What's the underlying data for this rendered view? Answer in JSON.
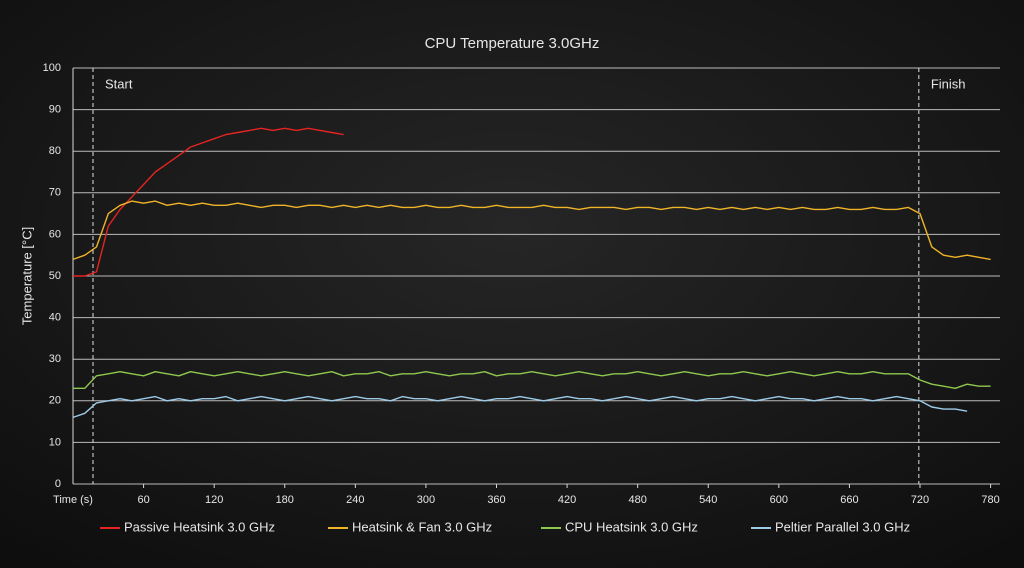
{
  "chart_data": {
    "type": "line",
    "title": "CPU Temperature 3.0GHz",
    "x_label": "Time (s)",
    "y_label": "Temperature [°C]",
    "x": [
      0,
      10,
      20,
      30,
      40,
      50,
      60,
      70,
      80,
      90,
      100,
      110,
      120,
      130,
      140,
      150,
      160,
      170,
      180,
      190,
      200,
      210,
      220,
      230,
      240,
      250,
      260,
      270,
      280,
      290,
      300,
      310,
      320,
      330,
      340,
      350,
      360,
      370,
      380,
      390,
      400,
      410,
      420,
      430,
      440,
      450,
      460,
      470,
      480,
      490,
      500,
      510,
      520,
      530,
      540,
      550,
      560,
      570,
      580,
      590,
      600,
      610,
      620,
      630,
      640,
      650,
      660,
      670,
      680,
      690,
      700,
      710,
      720,
      730,
      740,
      750,
      760,
      770,
      780
    ],
    "series": [
      {
        "name": "Passive Heatsink 3.0 GHz",
        "color": "#e52421",
        "values": [
          50,
          50,
          51,
          62,
          66,
          69,
          72,
          75,
          77,
          79,
          81,
          82,
          83,
          84,
          84.5,
          85,
          85.5,
          85,
          85.5,
          85,
          85.5,
          85,
          84.5,
          84,
          null,
          null,
          null,
          null,
          null,
          null,
          null,
          null,
          null,
          null,
          null,
          null,
          null,
          null,
          null,
          null,
          null,
          null,
          null,
          null,
          null,
          null,
          null,
          null,
          null,
          null,
          null,
          null,
          null,
          null,
          null,
          null,
          null,
          null,
          null,
          null,
          null,
          null,
          null,
          null,
          null,
          null,
          null,
          null,
          null,
          null,
          null,
          null,
          null,
          null,
          null,
          null,
          null,
          null,
          null
        ]
      },
      {
        "name": "Heatsink & Fan 3.0 GHz",
        "color": "#f0b429",
        "values": [
          54,
          55,
          57,
          65,
          67,
          68,
          67.5,
          68,
          67,
          67.5,
          67,
          67.5,
          67,
          67,
          67.5,
          67,
          66.5,
          67,
          67,
          66.5,
          67,
          67,
          66.5,
          67,
          66.5,
          67,
          66.5,
          67,
          66.5,
          66.5,
          67,
          66.5,
          66.5,
          67,
          66.5,
          66.5,
          67,
          66.5,
          66.5,
          66.5,
          67,
          66.5,
          66.5,
          66,
          66.5,
          66.5,
          66.5,
          66,
          66.5,
          66.5,
          66,
          66.5,
          66.5,
          66,
          66.5,
          66,
          66.5,
          66,
          66.5,
          66,
          66.5,
          66,
          66.5,
          66,
          66,
          66.5,
          66,
          66,
          66.5,
          66,
          66,
          66.5,
          65,
          57,
          55,
          54.5,
          55,
          54.5,
          54
        ]
      },
      {
        "name": "CPU Heatsink 3.0 GHz",
        "color": "#8fc84f",
        "values": [
          23,
          23,
          26,
          26.5,
          27,
          26.5,
          26,
          27,
          26.5,
          26,
          27,
          26.5,
          26,
          26.5,
          27,
          26.5,
          26,
          26.5,
          27,
          26.5,
          26,
          26.5,
          27,
          26,
          26.5,
          26.5,
          27,
          26,
          26.5,
          26.5,
          27,
          26.5,
          26,
          26.5,
          26.5,
          27,
          26,
          26.5,
          26.5,
          27,
          26.5,
          26,
          26.5,
          27,
          26.5,
          26,
          26.5,
          26.5,
          27,
          26.5,
          26,
          26.5,
          27,
          26.5,
          26,
          26.5,
          26.5,
          27,
          26.5,
          26,
          26.5,
          27,
          26.5,
          26,
          26.5,
          27,
          26.5,
          26.5,
          27,
          26.5,
          26.5,
          26.5,
          25,
          24,
          23.5,
          23,
          24,
          23.5,
          23.5
        ]
      },
      {
        "name": "Peltier Parallel 3.0 GHz",
        "color": "#9ccbe8",
        "values": [
          16,
          17,
          19.5,
          20,
          20.5,
          20,
          20.5,
          21,
          20,
          20.5,
          20,
          20.5,
          20.5,
          21,
          20,
          20.5,
          21,
          20.5,
          20,
          20.5,
          21,
          20.5,
          20,
          20.5,
          21,
          20.5,
          20.5,
          20,
          21,
          20.5,
          20.5,
          20,
          20.5,
          21,
          20.5,
          20,
          20.5,
          20.5,
          21,
          20.5,
          20,
          20.5,
          21,
          20.5,
          20.5,
          20,
          20.5,
          21,
          20.5,
          20,
          20.5,
          21,
          20.5,
          20,
          20.5,
          20.5,
          21,
          20.5,
          20,
          20.5,
          21,
          20.5,
          20.5,
          20,
          20.5,
          21,
          20.5,
          20.5,
          20,
          20.5,
          21,
          20.5,
          20,
          18.5,
          18,
          18,
          17.5,
          null,
          null
        ]
      }
    ],
    "xlim": [
      0,
      788
    ],
    "xticks": [
      60,
      120,
      180,
      240,
      300,
      360,
      420,
      480,
      540,
      600,
      660,
      720,
      780
    ],
    "ylim": [
      0,
      100
    ],
    "yticks": [
      0,
      10,
      20,
      30,
      40,
      50,
      60,
      70,
      80,
      90,
      100
    ],
    "grid": true,
    "annotations": [
      {
        "text": "Start",
        "x": 17
      },
      {
        "text": "Finish",
        "x": 719
      }
    ],
    "legend": "bottom"
  }
}
